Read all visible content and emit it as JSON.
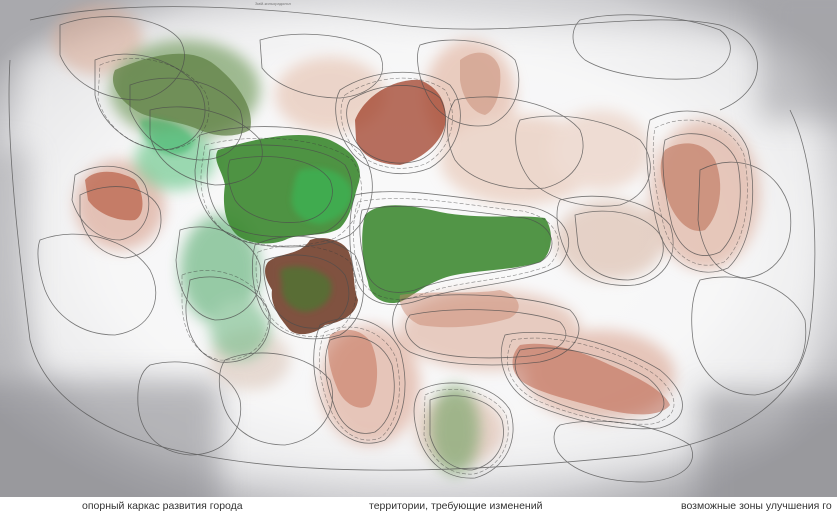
{
  "map": {
    "top_label": "Змій-кильорадольн",
    "colors": {
      "backdrop": "#d4d4d6",
      "frame_shadow": "#b9b9bc",
      "core_green": "#3f7f2f",
      "bright_green": "#4fb067",
      "terracotta": "#b8573f",
      "peach": "#dcae99",
      "outline": "#4d4d4d"
    }
  },
  "legend": {
    "items": [
      "опорный каркас развития города",
      "территории, требующие изменений",
      "возможные зоны улучшения го"
    ]
  }
}
